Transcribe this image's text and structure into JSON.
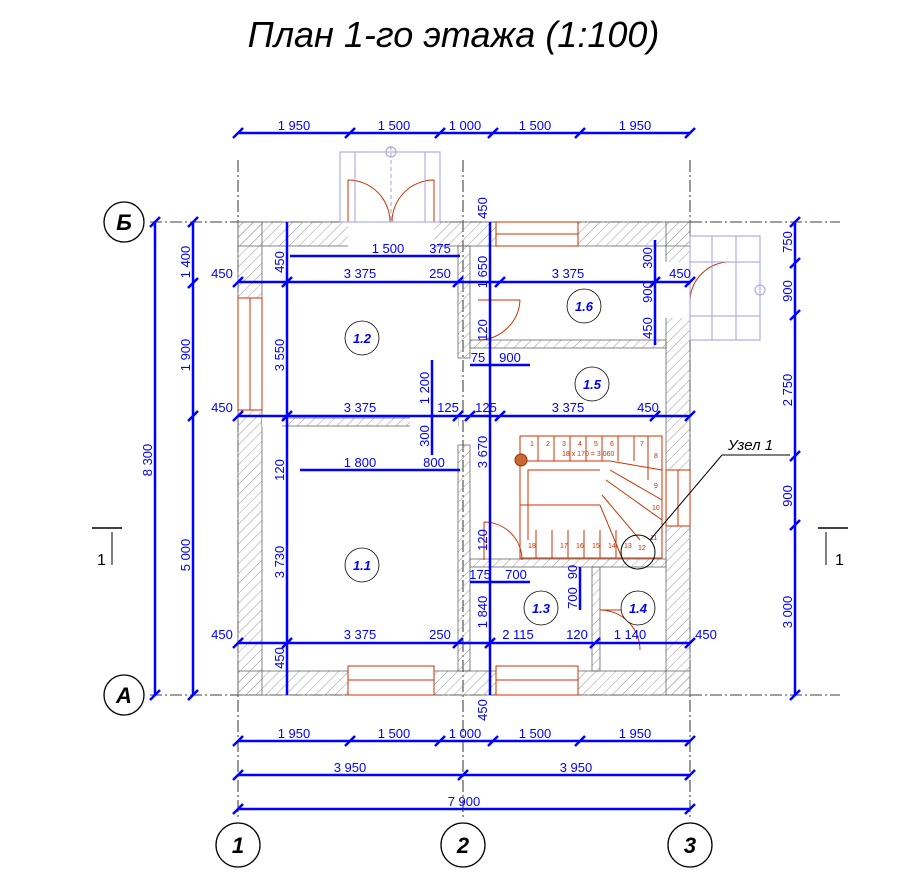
{
  "title": "План 1-го этажа (1:100)",
  "axes": {
    "a": "А",
    "b": "Б",
    "c1": "1",
    "c2": "2",
    "c3": "3"
  },
  "section_mark": "1",
  "node_label": "Узел 1",
  "rooms": {
    "r11": "1.1",
    "r12": "1.2",
    "r13": "1.3",
    "r14": "1.4",
    "r15": "1.5",
    "r16": "1.6"
  },
  "stair_label": "18 x 170 = 3 060",
  "stair_steps": [
    "1",
    "2",
    "3",
    "4",
    "5",
    "6",
    "7",
    "8",
    "9",
    "10",
    "11",
    "12",
    "13",
    "14",
    "15",
    "16",
    "17",
    "18"
  ],
  "dims": {
    "top": [
      "1 950",
      "1 500",
      "1 000",
      "1 500",
      "1 950"
    ],
    "bottom1": [
      "1 950",
      "1 500",
      "1 000",
      "1 500",
      "1 950"
    ],
    "bottom2": [
      "3 950",
      "3 950"
    ],
    "bottom3": "7 900",
    "left": [
      "8 300",
      "1 400",
      "1 900",
      "5 000"
    ],
    "right": [
      "750",
      "900",
      "2 750",
      "900",
      "3 000"
    ],
    "r1": [
      "450",
      "3 375",
      "250",
      "3 375",
      "450"
    ],
    "r2": [
      "450",
      "3 375",
      "125",
      "125",
      "3 375",
      "450"
    ],
    "r3": [
      "450",
      "3 375",
      "250",
      "2 115",
      "120",
      "1 140",
      "450"
    ],
    "inner_top": [
      "1 500",
      "375"
    ],
    "inner_mid": [
      "1 800",
      "800"
    ],
    "v_left": [
      "450",
      "3 550",
      "120",
      "3 730",
      "450"
    ],
    "v_center": [
      "450",
      "1 650",
      "120",
      "3 670",
      "120",
      "1 840",
      "450"
    ],
    "v_mid": [
      "1 200",
      "300"
    ],
    "v_right": [
      "300",
      "900",
      "450"
    ],
    "small": [
      "75",
      "900",
      "175",
      "700",
      "700",
      "90"
    ]
  }
}
